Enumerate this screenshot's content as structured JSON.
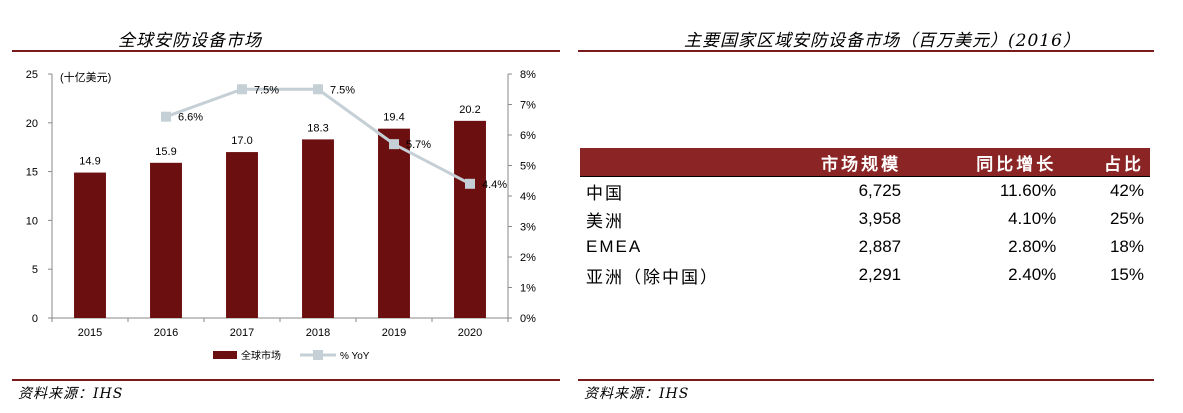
{
  "left_panel": {
    "title": "全球安防设备市场",
    "source": "资料来源：IHS"
  },
  "right_panel": {
    "title": "主要国家区域安防设备市场（百万美元）(2016）",
    "source": "资料来源：IHS",
    "table": {
      "columns": [
        "",
        "市场规模",
        "同比增长",
        "占比"
      ],
      "rows": [
        {
          "region": "中国",
          "size": "6,725",
          "growth": "11.60%",
          "share": "42%"
        },
        {
          "region": "美洲",
          "size": "3,958",
          "growth": "4.10%",
          "share": "25%"
        },
        {
          "region": "EMEA",
          "size": "2,887",
          "growth": "2.80%",
          "share": "18%"
        },
        {
          "region": "亚洲（除中国）",
          "size": "2,291",
          "growth": "2.40%",
          "share": "15%"
        }
      ]
    }
  },
  "chart_data": {
    "type": "bar",
    "unit_label": "(十亿美元)",
    "categories": [
      "2015",
      "2016",
      "2017",
      "2018",
      "2019",
      "2020"
    ],
    "series": [
      {
        "name": "全球市场",
        "type": "bar",
        "axis": "left",
        "color": "#6b0f10",
        "values": [
          14.9,
          15.9,
          17.0,
          18.3,
          19.4,
          20.2
        ],
        "labels": [
          "14.9",
          "15.9",
          "17.0",
          "18.3",
          "19.4",
          "20.2"
        ]
      },
      {
        "name": "% YoY",
        "type": "line",
        "axis": "right",
        "color": "#c5cfd6",
        "values": [
          null,
          6.6,
          7.5,
          7.5,
          5.7,
          4.4
        ],
        "labels": [
          "",
          "6.6%",
          "7.5%",
          "7.5%",
          "5.7%",
          "4.4%"
        ]
      }
    ],
    "ylim_left": [
      0,
      25
    ],
    "yticks_left": [
      "0",
      "5",
      "10",
      "15",
      "20",
      "25"
    ],
    "ylim_right": [
      0,
      8
    ],
    "yticks_right": [
      "0%",
      "1%",
      "2%",
      "3%",
      "4%",
      "5%",
      "6%",
      "7%",
      "8%"
    ],
    "legend_position": "bottom",
    "grid": false
  }
}
